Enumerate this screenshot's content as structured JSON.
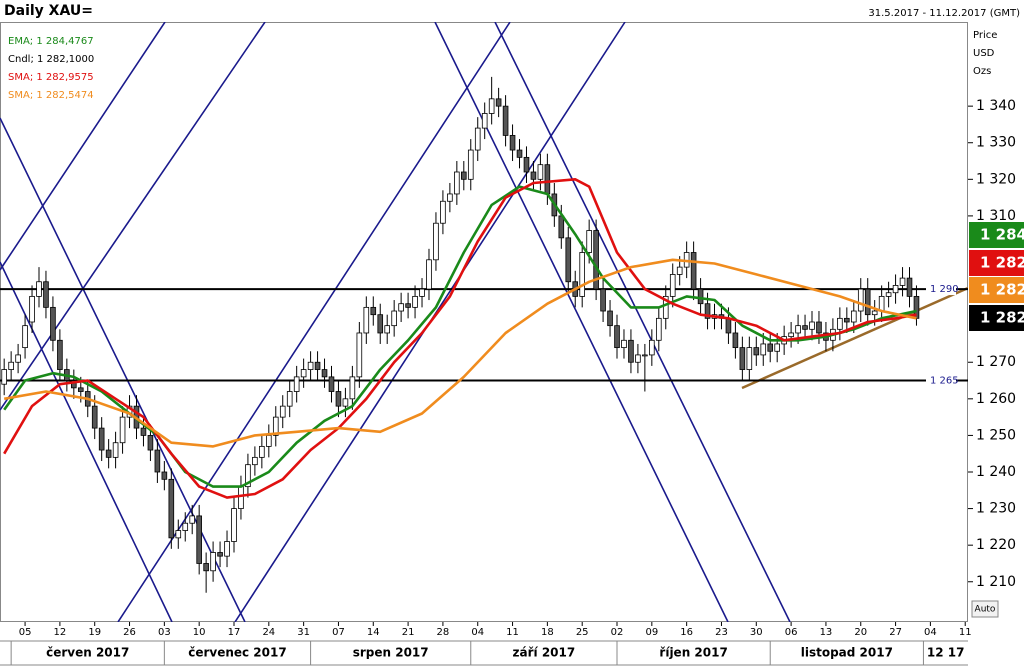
{
  "chart_data": {
    "type": "candlestick",
    "title": "Daily XAU=",
    "subtitle": "31.5.2017 - 11.12.2017 (GMT)",
    "y_axis_label": [
      "Price",
      "USD",
      "Ozs"
    ],
    "candle_legend": "Cndl; 1 282,1000",
    "candle_last_label": "1 282,1",
    "scale_button": "Auto",
    "open": [
      1264,
      1268,
      1270,
      1274,
      1281,
      1288,
      1292,
      1285,
      1276,
      1268,
      1265,
      1263,
      1262,
      1258,
      1252,
      1246,
      1244,
      1248,
      1255,
      1258,
      1252,
      1250,
      1246,
      1240,
      1238,
      1222,
      1224,
      1226,
      1228,
      1215,
      1213,
      1218,
      1217,
      1221,
      1230,
      1236,
      1242,
      1244,
      1247,
      1250,
      1255,
      1258,
      1262,
      1266,
      1268,
      1270,
      1268,
      1266,
      1262,
      1258,
      1260,
      1266,
      1278,
      1285,
      1283,
      1278,
      1280,
      1284,
      1286,
      1285,
      1288,
      1290,
      1298,
      1308,
      1314,
      1316,
      1322,
      1320,
      1328,
      1334,
      1338,
      1342,
      1340,
      1332,
      1328,
      1326,
      1322,
      1320,
      1324,
      1316,
      1310,
      1304,
      1292,
      1288,
      1300,
      1306,
      1290,
      1284,
      1280,
      1274,
      1276,
      1270,
      1272,
      1272,
      1276,
      1282,
      1288,
      1294,
      1296,
      1300,
      1290,
      1286,
      1282,
      1283,
      1282,
      1278,
      1274,
      1268,
      1274,
      1272,
      1275,
      1273,
      1275,
      1277,
      1278,
      1280,
      1279,
      1281,
      1278,
      1276,
      1279,
      1282,
      1281,
      1284,
      1290,
      1283,
      1284,
      1288,
      1289,
      1291,
      1293,
      1288
    ],
    "high": [
      1271,
      1273,
      1275,
      1283,
      1291,
      1296,
      1295,
      1288,
      1279,
      1271,
      1268,
      1266,
      1265,
      1261,
      1255,
      1249,
      1251,
      1258,
      1261,
      1261,
      1255,
      1253,
      1249,
      1243,
      1241,
      1227,
      1229,
      1231,
      1231,
      1218,
      1221,
      1221,
      1224,
      1233,
      1239,
      1245,
      1247,
      1250,
      1253,
      1258,
      1261,
      1265,
      1269,
      1271,
      1273,
      1273,
      1271,
      1269,
      1265,
      1263,
      1269,
      1281,
      1288,
      1288,
      1286,
      1283,
      1287,
      1289,
      1289,
      1291,
      1293,
      1301,
      1311,
      1317,
      1319,
      1325,
      1325,
      1331,
      1337,
      1341,
      1348,
      1345,
      1343,
      1335,
      1331,
      1329,
      1325,
      1327,
      1327,
      1319,
      1313,
      1307,
      1295,
      1303,
      1309,
      1309,
      1293,
      1287,
      1283,
      1279,
      1279,
      1275,
      1275,
      1279,
      1285,
      1291,
      1297,
      1299,
      1303,
      1303,
      1293,
      1289,
      1286,
      1286,
      1285,
      1281,
      1277,
      1277,
      1277,
      1278,
      1278,
      1278,
      1280,
      1281,
      1283,
      1283,
      1284,
      1284,
      1281,
      1282,
      1285,
      1285,
      1287,
      1293,
      1293,
      1287,
      1291,
      1292,
      1294,
      1296,
      1296,
      1291
    ],
    "low": [
      1261,
      1265,
      1267,
      1271,
      1278,
      1285,
      1282,
      1273,
      1265,
      1262,
      1260,
      1259,
      1255,
      1249,
      1243,
      1241,
      1241,
      1245,
      1252,
      1249,
      1247,
      1243,
      1237,
      1235,
      1219,
      1219,
      1221,
      1223,
      1212,
      1207,
      1210,
      1214,
      1214,
      1218,
      1227,
      1233,
      1239,
      1241,
      1244,
      1247,
      1252,
      1255,
      1259,
      1263,
      1265,
      1265,
      1263,
      1259,
      1255,
      1255,
      1257,
      1263,
      1275,
      1280,
      1275,
      1275,
      1277,
      1281,
      1282,
      1282,
      1285,
      1287,
      1295,
      1305,
      1311,
      1313,
      1317,
      1317,
      1325,
      1331,
      1335,
      1337,
      1329,
      1325,
      1323,
      1319,
      1317,
      1317,
      1313,
      1307,
      1301,
      1289,
      1285,
      1285,
      1297,
      1287,
      1281,
      1277,
      1271,
      1271,
      1267,
      1267,
      1262,
      1269,
      1273,
      1279,
      1285,
      1291,
      1293,
      1287,
      1283,
      1279,
      1279,
      1279,
      1275,
      1271,
      1265,
      1265,
      1269,
      1269,
      1270,
      1270,
      1272,
      1274,
      1275,
      1276,
      1276,
      1275,
      1273,
      1273,
      1276,
      1278,
      1278,
      1281,
      1280,
      1280,
      1281,
      1285,
      1286,
      1288,
      1285,
      1280
    ],
    "close": [
      1268,
      1270,
      1272,
      1280,
      1288,
      1292,
      1285,
      1276,
      1268,
      1265,
      1263,
      1262,
      1258,
      1252,
      1246,
      1244,
      1248,
      1255,
      1258,
      1252,
      1250,
      1246,
      1240,
      1238,
      1222,
      1224,
      1226,
      1228,
      1215,
      1213,
      1218,
      1217,
      1221,
      1230,
      1236,
      1242,
      1244,
      1247,
      1250,
      1255,
      1258,
      1262,
      1266,
      1268,
      1270,
      1268,
      1266,
      1262,
      1258,
      1260,
      1266,
      1278,
      1285,
      1283,
      1278,
      1280,
      1284,
      1286,
      1285,
      1288,
      1290,
      1298,
      1308,
      1314,
      1316,
      1322,
      1320,
      1328,
      1334,
      1338,
      1342,
      1340,
      1332,
      1328,
      1326,
      1322,
      1320,
      1324,
      1316,
      1310,
      1304,
      1292,
      1288,
      1300,
      1306,
      1290,
      1284,
      1280,
      1274,
      1276,
      1270,
      1272,
      1272,
      1276,
      1282,
      1288,
      1294,
      1296,
      1300,
      1290,
      1286,
      1282,
      1283,
      1282,
      1278,
      1274,
      1268,
      1274,
      1272,
      1275,
      1273,
      1275,
      1277,
      1278,
      1280,
      1279,
      1281,
      1278,
      1276,
      1279,
      1282,
      1281,
      1284,
      1290,
      1283,
      1284,
      1288,
      1289,
      1291,
      1293,
      1288,
      1282
    ],
    "series": [
      {
        "name": "EMA; 1 284,4767",
        "color": "#1a8a1a",
        "last_label": "1 284,4",
        "x": [
          0,
          3,
          7,
          10,
          14,
          18,
          22,
          26,
          30,
          34,
          38,
          42,
          46,
          50,
          54,
          58,
          62,
          66,
          70,
          74,
          78,
          82,
          86,
          90,
          94,
          98,
          102,
          106,
          110,
          114,
          118,
          122,
          126,
          131
        ],
        "values": [
          1257,
          1265,
          1267,
          1266,
          1262,
          1256,
          1250,
          1240,
          1236,
          1236,
          1240,
          1248,
          1254,
          1258,
          1268,
          1276,
          1285,
          1300,
          1313,
          1318,
          1316,
          1305,
          1293,
          1285,
          1285,
          1288,
          1287,
          1280,
          1276,
          1276,
          1277,
          1279,
          1282,
          1284
        ]
      },
      {
        "name": "SMA; 1 282,9575",
        "color": "#e01010",
        "last_label": "1 282,9",
        "x": [
          0,
          4,
          8,
          12,
          16,
          20,
          24,
          28,
          32,
          36,
          40,
          44,
          48,
          52,
          56,
          60,
          64,
          68,
          72,
          76,
          82,
          84,
          88,
          92,
          96,
          100,
          104,
          108,
          112,
          116,
          120,
          124,
          128,
          131
        ],
        "values": [
          1245,
          1258,
          1264,
          1265,
          1260,
          1255,
          1245,
          1236,
          1233,
          1234,
          1238,
          1246,
          1252,
          1260,
          1270,
          1278,
          1288,
          1303,
          1315,
          1319,
          1320,
          1318,
          1300,
          1290,
          1286,
          1283,
          1282,
          1280,
          1276,
          1277,
          1278,
          1281,
          1282,
          1283
        ]
      },
      {
        "name": "SMA; 1 282,5474",
        "color": "#f08c1e",
        "last_label": "1 282,5",
        "x": [
          0,
          6,
          12,
          18,
          24,
          30,
          36,
          42,
          48,
          54,
          60,
          66,
          72,
          78,
          84,
          90,
          96,
          102,
          108,
          114,
          120,
          126,
          131
        ],
        "values": [
          1260,
          1262,
          1260,
          1256,
          1248,
          1247,
          1250,
          1251,
          1252,
          1251,
          1256,
          1266,
          1278,
          1286,
          1292,
          1296,
          1298,
          1297,
          1294,
          1291,
          1288,
          1284,
          1282
        ]
      }
    ],
    "hlines": [
      {
        "value": 1290,
        "label": "1 290"
      },
      {
        "value": 1265,
        "label": "1 265"
      }
    ],
    "xlim": [
      -0.6,
      138.4
    ],
    "xticks": [
      {
        "value": 3,
        "label": "05"
      },
      {
        "value": 8,
        "label": "12"
      },
      {
        "value": 13,
        "label": "19"
      },
      {
        "value": 18,
        "label": "26"
      },
      {
        "value": 23,
        "label": "03"
      },
      {
        "value": 28,
        "label": "10"
      },
      {
        "value": 33,
        "label": "17"
      },
      {
        "value": 38,
        "label": "24"
      },
      {
        "value": 43,
        "label": "31"
      },
      {
        "value": 48,
        "label": "07"
      },
      {
        "value": 53,
        "label": "14"
      },
      {
        "value": 58,
        "label": "21"
      },
      {
        "value": 63,
        "label": "28"
      },
      {
        "value": 68,
        "label": "04"
      },
      {
        "value": 73,
        "label": "11"
      },
      {
        "value": 78,
        "label": "18"
      },
      {
        "value": 83,
        "label": "25"
      },
      {
        "value": 88,
        "label": "02"
      },
      {
        "value": 93,
        "label": "09"
      },
      {
        "value": 98,
        "label": "16"
      },
      {
        "value": 103,
        "label": "23"
      },
      {
        "value": 108,
        "label": "30"
      },
      {
        "value": 113,
        "label": "06"
      },
      {
        "value": 118,
        "label": "13"
      },
      {
        "value": 123,
        "label": "20"
      },
      {
        "value": 128,
        "label": "27"
      },
      {
        "value": 133,
        "label": "04"
      },
      {
        "value": 138,
        "label": "11"
      }
    ],
    "months": [
      {
        "value": 1,
        "label": "červen 2017"
      },
      {
        "value": 23,
        "label": "červenec 2017"
      },
      {
        "value": 44,
        "label": "srpen 2017"
      },
      {
        "value": 67,
        "label": "září 2017"
      },
      {
        "value": 88,
        "label": "říjen 2017"
      },
      {
        "value": 110,
        "label": "listopad 2017"
      },
      {
        "value": 132,
        "label": "12 17"
      }
    ],
    "ylim": [
      1199,
      1363
    ],
    "yticks": [
      {
        "value": 1210,
        "label": "1 210"
      },
      {
        "value": 1220,
        "label": "1 220"
      },
      {
        "value": 1230,
        "label": "1 230"
      },
      {
        "value": 1240,
        "label": "1 240"
      },
      {
        "value": 1250,
        "label": "1 250"
      },
      {
        "value": 1260,
        "label": "1 260"
      },
      {
        "value": 1270,
        "label": "1 270"
      },
      {
        "value": 1310,
        "label": "1 310"
      },
      {
        "value": 1320,
        "label": "1 320"
      },
      {
        "value": 1330,
        "label": "1 330"
      },
      {
        "value": 1340,
        "label": "1 340"
      }
    ]
  }
}
